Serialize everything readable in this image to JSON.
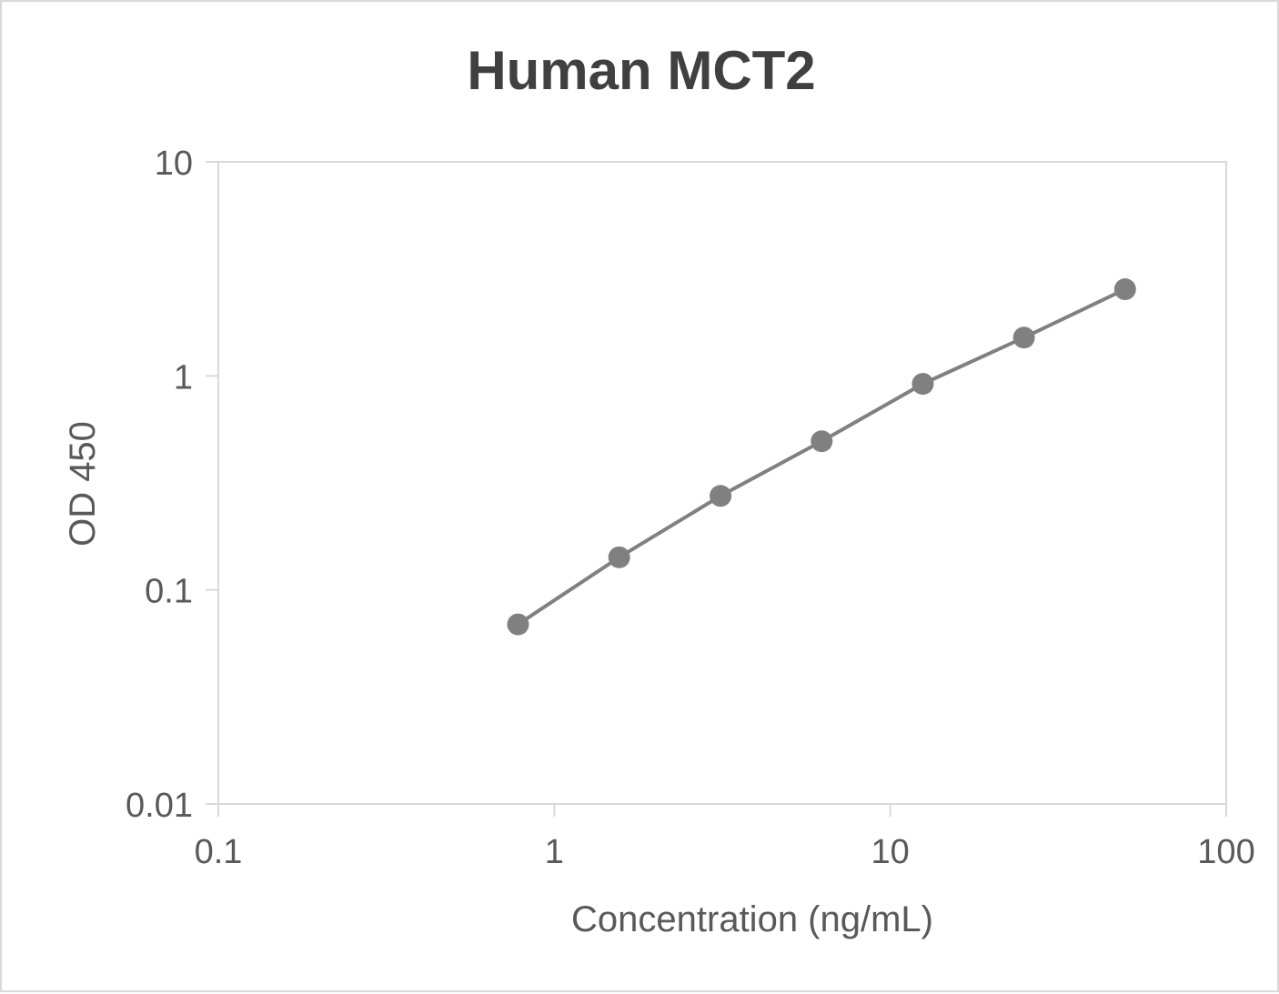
{
  "chart_data": {
    "type": "line",
    "title": "Human MCT2",
    "xlabel": "Concentration (ng/mL)",
    "ylabel": "OD 450",
    "x_scale": "log",
    "y_scale": "log",
    "xlim": [
      0.1,
      100
    ],
    "ylim": [
      0.01,
      10
    ],
    "x_ticks": [
      "0.1",
      "1",
      "10",
      "100"
    ],
    "y_ticks": [
      "0.01",
      "0.1",
      "1",
      "10"
    ],
    "grid": false,
    "legend": "none",
    "colors": {
      "series": "#808080",
      "axis": "#d9d9d9",
      "text": "#595959",
      "title": "#404040"
    },
    "series": [
      {
        "x": [
          0.78,
          1.56,
          3.125,
          6.25,
          12.5,
          25,
          50
        ],
        "y": [
          0.069,
          0.142,
          0.275,
          0.495,
          0.918,
          1.51,
          2.54
        ]
      }
    ]
  }
}
